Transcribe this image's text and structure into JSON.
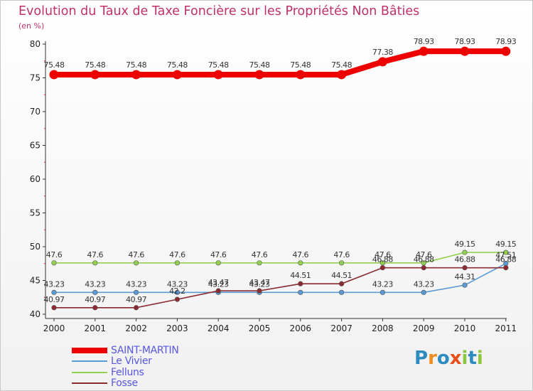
{
  "chart_data": {
    "type": "line",
    "title": "Evolution du Taux de Taxe Foncière sur les Propriétés Non Bâties",
    "ylabel": "(en %)",
    "xlabel": "",
    "ylim": [
      40,
      80
    ],
    "yticks": [
      40,
      45,
      50,
      55,
      60,
      65,
      70,
      75,
      80
    ],
    "categories": [
      "2000",
      "2001",
      "2002",
      "2003",
      "2004",
      "2005",
      "2006",
      "2007",
      "2008",
      "2009",
      "2010",
      "2011"
    ],
    "series": [
      {
        "name": "SAINT-MARTIN",
        "color": "#ee0000",
        "values": [
          75.48,
          75.48,
          75.48,
          75.48,
          75.48,
          75.48,
          75.48,
          75.48,
          77.38,
          78.93,
          78.93,
          78.93
        ],
        "labels": [
          "75.48",
          "75.48",
          "75.48",
          "75.48",
          "75.48",
          "75.48",
          "75.48",
          "75.48",
          "77.38",
          "78.93",
          "78.93",
          "78.93"
        ]
      },
      {
        "name": "Le Vivier",
        "color": "#5b9bd5",
        "values": [
          43.23,
          43.23,
          43.23,
          43.23,
          43.23,
          43.23,
          43.23,
          43.23,
          43.23,
          43.23,
          44.31,
          47.51
        ],
        "labels": [
          "43.23",
          "43.23",
          "43.23",
          "43.23",
          "43.23",
          "43.23",
          "",
          "",
          "43.23",
          "43.23",
          "44.31",
          "47.51"
        ]
      },
      {
        "name": "Felluns",
        "color": "#92d050",
        "values": [
          47.6,
          47.6,
          47.6,
          47.6,
          47.6,
          47.6,
          47.6,
          47.6,
          47.6,
          47.6,
          49.15,
          49.15
        ],
        "labels": [
          "47.6",
          "47.6",
          "47.6",
          "47.6",
          "47.6",
          "47.6",
          "47.6",
          "47.6",
          "47.6",
          "47.6",
          "49.15",
          "49.15"
        ]
      },
      {
        "name": "Fosse",
        "color": "#8b2a30",
        "values": [
          40.97,
          40.97,
          40.97,
          42.2,
          43.47,
          43.47,
          44.51,
          44.51,
          46.88,
          46.88,
          46.88,
          46.88
        ],
        "labels": [
          "40.97",
          "40.97",
          "40.97",
          "42.2",
          "43.47",
          "43.47",
          "44.51",
          "44.51",
          "46.88",
          "46.88",
          "46.88",
          "46.88"
        ]
      }
    ],
    "grid": false,
    "legend": "bottom-left"
  },
  "logo": {
    "text": "Proxiti",
    "letters": [
      {
        "char": "P",
        "color": "#2e8bc0"
      },
      {
        "char": "r",
        "color": "#f08c1e"
      },
      {
        "char": "o",
        "color": "#2e8bc0"
      },
      {
        "char": "x",
        "color": "#e84e1b"
      },
      {
        "char": "i",
        "color": "#8cc63f"
      },
      {
        "char": "t",
        "color": "#2e8bc0"
      },
      {
        "char": "i",
        "color": "#8cc63f"
      }
    ]
  }
}
